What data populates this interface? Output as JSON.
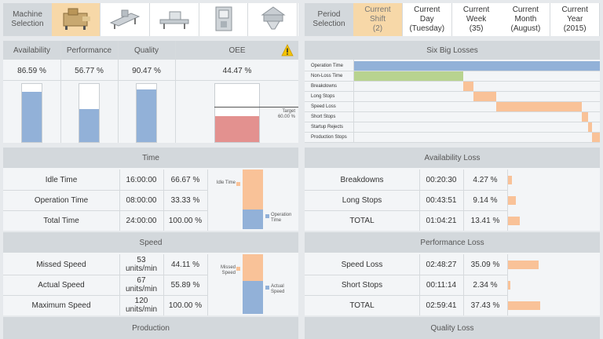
{
  "colors": {
    "blue": "#92b1d8",
    "orange": "#f9c298",
    "green": "#b8d38f",
    "red": "#e3918f",
    "selected": "#f7d8a8"
  },
  "machine_selection": {
    "label": "Machine\nSelection",
    "machines": [
      {
        "icon": "packaging-machine-icon",
        "selected": true
      },
      {
        "icon": "flow-wrapper-icon",
        "selected": false
      },
      {
        "icon": "conveyor-machine-icon",
        "selected": false
      },
      {
        "icon": "vertical-bagger-icon",
        "selected": false
      },
      {
        "icon": "multihead-weigher-icon",
        "selected": false
      }
    ]
  },
  "period_selection": {
    "label": "Period\nSelection",
    "periods": [
      {
        "label": "Current\nShift\n(2)",
        "selected": true
      },
      {
        "label": "Current\nDay\n(Tuesday)",
        "selected": false
      },
      {
        "label": "Current\nWeek\n(35)",
        "selected": false
      },
      {
        "label": "Current\nMonth\n(August)",
        "selected": false
      },
      {
        "label": "Current\nYear\n(2015)",
        "selected": false
      }
    ]
  },
  "kpis": {
    "items": [
      {
        "label": "Availability",
        "value": "86.59 %",
        "fraction": 0.8659
      },
      {
        "label": "Performance",
        "value": "56.77 %",
        "fraction": 0.5677
      },
      {
        "label": "Quality",
        "value": "90.47 %",
        "fraction": 0.9047
      }
    ],
    "oee": {
      "label": "OEE",
      "value": "44.47 %",
      "fraction": 0.4447,
      "target_label": "Target\n60.00 %",
      "target_fraction": 0.6,
      "warning_icon": "warning-icon"
    }
  },
  "six_big_losses": {
    "title": "Six Big Losses",
    "rows": [
      {
        "label": "Operation Time",
        "start": 0.0,
        "end": 1.0,
        "color": "blue"
      },
      {
        "label": "Non-Loss Time",
        "start": 0.0,
        "end": 0.445,
        "color": "green"
      },
      {
        "label": "Breakdowns",
        "start": 0.445,
        "end": 0.487,
        "color": "orange"
      },
      {
        "label": "Long Stops",
        "start": 0.487,
        "end": 0.578,
        "color": "orange"
      },
      {
        "label": "Speed Loss",
        "start": 0.578,
        "end": 0.928,
        "color": "orange"
      },
      {
        "label": "Short Stops",
        "start": 0.928,
        "end": 0.952,
        "color": "orange"
      },
      {
        "label": "Startup Rejects",
        "start": 0.952,
        "end": 0.968,
        "color": "orange"
      },
      {
        "label": "Production Stops",
        "start": 0.968,
        "end": 1.0,
        "color": "orange"
      }
    ]
  },
  "time": {
    "title": "Time",
    "rows": [
      {
        "label": "Idle Time",
        "value": "16:00:00",
        "pct": "66.67 %"
      },
      {
        "label": "Operation Time",
        "value": "08:00:00",
        "pct": "33.33 %"
      },
      {
        "label": "Total Time",
        "value": "24:00:00",
        "pct": "100.00 %"
      }
    ],
    "chart": {
      "top_label": "Idle Time",
      "bottom_label": "Operation\nTime",
      "top_fraction": 0.6667,
      "bottom_fraction": 0.3333
    }
  },
  "speed": {
    "title": "Speed",
    "rows": [
      {
        "label": "Missed Speed",
        "value": "53\nunits/min",
        "pct": "44.11 %"
      },
      {
        "label": "Actual Speed",
        "value": "67\nunits/min",
        "pct": "55.89 %"
      },
      {
        "label": "Maximum Speed",
        "value": "120\nunits/min",
        "pct": "100.00 %"
      }
    ],
    "chart": {
      "top_label": "Missed\nSpeed",
      "bottom_label": "Actual\nSpeed",
      "top_fraction": 0.4411,
      "bottom_fraction": 0.5589
    }
  },
  "availability_loss": {
    "title": "Availability Loss",
    "rows": [
      {
        "label": "Breakdowns",
        "value": "00:20:30",
        "pct": "4.27 %",
        "fraction": 0.0427
      },
      {
        "label": "Long Stops",
        "value": "00:43:51",
        "pct": "9.14 %",
        "fraction": 0.0914
      },
      {
        "label": "TOTAL",
        "value": "01:04:21",
        "pct": "13.41 %",
        "fraction": 0.1341
      }
    ]
  },
  "performance_loss": {
    "title": "Performance Loss",
    "rows": [
      {
        "label": "Speed Loss",
        "value": "02:48:27",
        "pct": "35.09 %",
        "fraction": 0.3509
      },
      {
        "label": "Short Stops",
        "value": "00:11:14",
        "pct": "2.34 %",
        "fraction": 0.0234
      },
      {
        "label": "TOTAL",
        "value": "02:59:41",
        "pct": "37.43 %",
        "fraction": 0.3743
      }
    ]
  },
  "production": {
    "title": "Production"
  },
  "quality_loss": {
    "title": "Quality Loss"
  }
}
